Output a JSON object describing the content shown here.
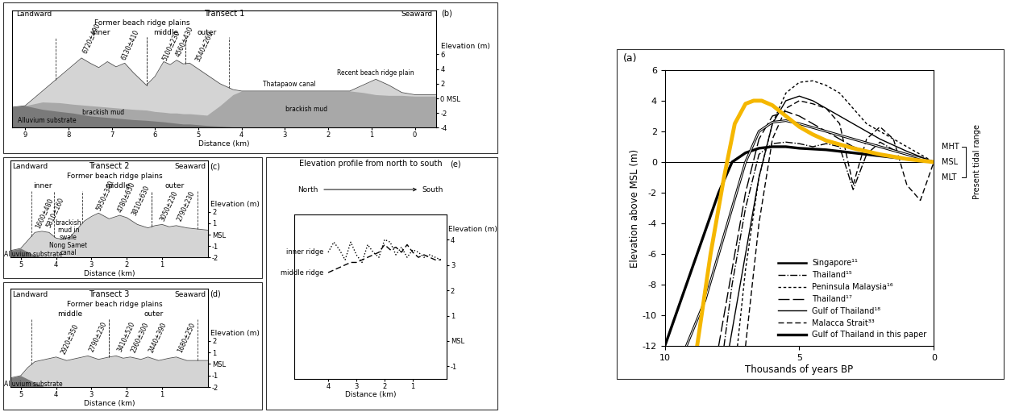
{
  "chart_data": [
    {
      "type": "cross_section",
      "panel": "(b)",
      "title": "Transect 1",
      "left_label": "Landward",
      "right_label": "Seaward",
      "group_title": "Former beach ridge plains",
      "xlabel": "Distance (km)",
      "ylabel": "Elevation (m)",
      "xlim": [
        9.3,
        -0.5
      ],
      "xticks": [
        9,
        8,
        7,
        6,
        5,
        4,
        3,
        2,
        1,
        0
      ],
      "ylim": [
        -4,
        12
      ],
      "yticks": [
        -4,
        -2,
        {
          "value": 0,
          "label": "0 MSL"
        },
        2,
        4,
        6
      ],
      "x": [
        9.3,
        9.0,
        8.6,
        8.2,
        7.9,
        7.7,
        7.5,
        7.3,
        7.1,
        6.9,
        6.7,
        6.5,
        6.2,
        6.0,
        5.8,
        5.65,
        5.5,
        5.35,
        5.2,
        5.0,
        4.8,
        4.5,
        4.2,
        4.0,
        3.0,
        2.0,
        1.5,
        1.2,
        0.9,
        0.6,
        0.3,
        0.0,
        -0.5
      ],
      "layers": [
        {
          "color": "#d4d4d4",
          "values": [
            -1.2,
            -1.0,
            1.0,
            3.0,
            4.5,
            5.5,
            4.8,
            4.2,
            5.0,
            4.3,
            4.8,
            3.5,
            1.8,
            3.0,
            5.0,
            4.6,
            5.2,
            4.7,
            4.8,
            4.0,
            3.2,
            2.0,
            1.2,
            1.0,
            1.0,
            1.0,
            1.0,
            1.8,
            2.6,
            1.8,
            0.8,
            0.5,
            0.5
          ]
        },
        {
          "color": "#a8a8a8",
          "values": [
            -1.2,
            -1.0,
            -0.5,
            -0.6,
            -0.8,
            -0.9,
            -1.0,
            -1.1,
            -1.2,
            -1.3,
            -1.4,
            -1.5,
            -1.6,
            -1.8,
            -1.9,
            -2.0,
            -2.0,
            -2.1,
            -2.1,
            -2.2,
            -2.3,
            -1.0,
            0.5,
            1.0,
            1.0,
            1.0,
            1.0,
            0.8,
            0.5,
            0.4,
            0.4,
            0.3,
            0.3
          ]
        },
        {
          "color": "#7a7a7a",
          "values": [
            -1.2,
            -1.0,
            -1.5,
            -1.8,
            -2.0,
            -2.2,
            -2.4,
            -2.5,
            -2.6,
            -2.7,
            -2.8,
            -2.9,
            -3.0,
            -3.1,
            -3.2,
            -3.3,
            -3.4,
            -3.5,
            -3.5,
            -3.6,
            -3.7,
            -3.8,
            -3.9,
            -4.0,
            -4.0,
            -4.0,
            -4.0,
            -4.0,
            -4.0,
            -4.0,
            -4.0,
            -4.0,
            -4.0
          ]
        }
      ],
      "groups": [
        {
          "label": "inner",
          "from": 8.3,
          "to": 6.2
        },
        {
          "label": "middle",
          "from": 6.2,
          "to": 5.3
        },
        {
          "label": "outer",
          "from": 5.3,
          "to": 4.3
        }
      ],
      "dates": [
        {
          "label": "6720±490",
          "x": 7.7
        },
        {
          "label": "6130±410",
          "x": 6.8
        },
        {
          "label": "5100±230",
          "x": 5.85
        },
        {
          "label": "4560±430",
          "x": 5.55
        },
        {
          "label": "3540±260",
          "x": 5.1
        }
      ],
      "annotations": [
        {
          "text": "brackish mud",
          "x": 7.2,
          "y": -1.9
        },
        {
          "text": "brackish mud",
          "x": 2.5,
          "y": -1.5
        },
        {
          "text": "Alluvium substrate",
          "x": 8.5,
          "y": -3.0
        },
        {
          "text": "Thatapaow canal",
          "x": 2.9,
          "y": 1.9
        },
        {
          "text": "Recent beach ridge plain",
          "x": 0.9,
          "y": 3.5
        }
      ]
    },
    {
      "type": "cross_section",
      "panel": "(c)",
      "title": "Transect 2",
      "left_label": "Landward",
      "right_label": "Seaward",
      "group_title": "Former beach ridge plains",
      "xlabel": "Distance (km)",
      "ylabel": "Elevation (m)",
      "xlim": [
        5.3,
        -0.3
      ],
      "xticks": [
        5,
        4,
        3,
        2,
        1
      ],
      "ylim": [
        -2,
        6.5
      ],
      "yticks": [
        -2,
        -1,
        {
          "value": 0,
          "label": "MSL"
        },
        1,
        2
      ],
      "x": [
        5.3,
        5.0,
        4.8,
        4.6,
        4.4,
        4.2,
        4.0,
        3.8,
        3.6,
        3.4,
        3.2,
        3.0,
        2.8,
        2.5,
        2.2,
        2.0,
        1.7,
        1.4,
        1.2,
        1.0,
        0.8,
        0.6,
        0.3,
        0.0,
        -0.3
      ],
      "layers": [
        {
          "color": "#d4d4d4",
          "values": [
            -1.4,
            -1.2,
            -0.5,
            0.2,
            0.3,
            0.2,
            -0.3,
            -0.4,
            -0.2,
            0.5,
            1.2,
            1.6,
            1.9,
            1.4,
            1.7,
            1.5,
            0.9,
            0.6,
            0.8,
            0.9,
            0.7,
            0.8,
            0.6,
            0.5,
            0.4
          ]
        },
        {
          "color": "#7a7a7a",
          "values": [
            -1.4,
            -1.2,
            -1.5,
            -1.8,
            -2.0,
            -2.0,
            -2.0,
            -2.0,
            -2.0,
            -2.0,
            -2.0,
            -2.0,
            -2.0,
            -2.0,
            -2.0,
            -2.0,
            -2.0,
            -2.0,
            -2.0,
            -2.0,
            -2.0,
            -2.0,
            -2.0,
            -2.0,
            -2.0
          ]
        }
      ],
      "groups": [
        {
          "label": "inner",
          "from": 4.7,
          "to": 4.05
        },
        {
          "label": "middle",
          "from": 3.25,
          "to": 1.3
        },
        {
          "label": "outer",
          "from": 1.3,
          "to": 0.0
        }
      ],
      "dates": [
        {
          "label": "1600±480",
          "x": 4.6
        },
        {
          "label": "5810±160",
          "x": 4.3
        },
        {
          "label": "5950±340",
          "x": 2.9
        },
        {
          "label": "4780±650",
          "x": 2.3
        },
        {
          "label": "3810±630",
          "x": 1.9
        },
        {
          "label": "3050±230",
          "x": 1.1
        },
        {
          "label": "2790±230",
          "x": 0.6
        }
      ],
      "annotations": [
        {
          "text": "brackish\nmud in\nswale",
          "x": 3.65,
          "y": 0.4
        },
        {
          "text": "Nong Samet\ncanal",
          "x": 3.65,
          "y": -1.3
        },
        {
          "text": "Alluvium substrate",
          "x": 4.65,
          "y": -1.75
        }
      ]
    },
    {
      "type": "cross_section",
      "panel": "(d)",
      "title": "Transect 3",
      "left_label": "Landward",
      "right_label": "Seaward",
      "group_title": "Former beach ridge plains",
      "xlabel": "Distance (km)",
      "ylabel": "Elevation (m)",
      "xlim": [
        5.3,
        -0.3
      ],
      "xticks": [
        5,
        4,
        3,
        2,
        1
      ],
      "ylim": [
        -2,
        6.5
      ],
      "yticks": [
        -2,
        -1,
        {
          "value": 0,
          "label": "MSL"
        },
        1,
        2
      ],
      "x": [
        5.3,
        5.0,
        4.8,
        4.6,
        4.3,
        4.0,
        3.7,
        3.4,
        3.1,
        2.8,
        2.5,
        2.3,
        2.1,
        1.9,
        1.6,
        1.4,
        1.1,
        0.8,
        0.6,
        0.3,
        0.0,
        -0.3
      ],
      "layers": [
        {
          "color": "#d4d4d4",
          "values": [
            -1.2,
            -1.0,
            -0.3,
            0.2,
            0.4,
            0.6,
            0.3,
            0.5,
            0.7,
            0.4,
            0.6,
            0.7,
            0.5,
            0.6,
            0.4,
            0.6,
            0.3,
            0.5,
            0.6,
            0.3,
            0.3,
            0.3
          ]
        },
        {
          "color": "#7a7a7a",
          "values": [
            -1.2,
            -1.0,
            -1.3,
            -1.6,
            -2.0,
            -2.0,
            -2.0,
            -2.0,
            -2.0,
            -2.0,
            -2.0,
            -2.0,
            -2.0,
            -2.0,
            -2.0,
            -2.0,
            -2.0,
            -2.0,
            -2.0,
            -2.0,
            -2.0,
            -2.0
          ]
        }
      ],
      "groups": [
        {
          "label": "middle",
          "from": 4.7,
          "to": 2.5
        },
        {
          "label": "outer",
          "from": 2.5,
          "to": 0.0
        }
      ],
      "dates": [
        {
          "label": "2920±350",
          "x": 3.9
        },
        {
          "label": "2790±230",
          "x": 3.1
        },
        {
          "label": "3410±520",
          "x": 2.3
        },
        {
          "label": "2360±300",
          "x": 1.9
        },
        {
          "label": "2440±390",
          "x": 1.4
        },
        {
          "label": "1680±250",
          "x": 0.6
        }
      ],
      "annotations": [
        {
          "text": "Alluvium substrate",
          "x": 4.65,
          "y": -1.75
        }
      ]
    },
    {
      "type": "line",
      "panel": "(e)",
      "title": "Elevation profile from north to south",
      "direction": [
        "North",
        "South"
      ],
      "xlabel": "Distance (km)",
      "ylabel": "Elevation (m)",
      "xlim": [
        5.2,
        -0.2
      ],
      "xticks": [
        4,
        3,
        2,
        1
      ],
      "ylim": [
        -1.5,
        5
      ],
      "yticks": [
        -1,
        {
          "value": 0,
          "label": "MSL"
        },
        1,
        2,
        3,
        4
      ],
      "x": [
        4.0,
        3.8,
        3.6,
        3.4,
        3.2,
        3.0,
        2.8,
        2.6,
        2.4,
        2.2,
        2.0,
        1.8,
        1.6,
        1.4,
        1.2,
        1.0,
        0.8,
        0.6,
        0.4,
        0.2,
        0.0
      ],
      "series": [
        {
          "name": "inner ridge",
          "color": "#000000",
          "line_style": "dotted",
          "values": [
            3.5,
            3.9,
            3.6,
            3.2,
            3.9,
            3.4,
            3.1,
            3.8,
            3.5,
            3.3,
            4.0,
            3.9,
            3.4,
            3.7,
            3.3,
            3.6,
            3.5,
            3.3,
            3.4,
            3.3,
            3.2
          ]
        },
        {
          "name": "middle ridge",
          "color": "#000000",
          "line_style": "dashed",
          "values": [
            2.7,
            2.8,
            2.9,
            3.0,
            3.1,
            3.1,
            3.2,
            3.3,
            3.4,
            3.5,
            3.8,
            3.6,
            3.7,
            3.5,
            3.8,
            3.5,
            3.3,
            3.4,
            3.3,
            3.2,
            3.2
          ]
        }
      ]
    },
    {
      "type": "line",
      "panel": "(a)",
      "xlabel": "Thousands of years BP",
      "ylabel": "Elevation above MSL (m)",
      "xlim": [
        10,
        0
      ],
      "xticks": [
        10,
        5,
        0
      ],
      "ylim": [
        -12,
        6
      ],
      "yticks": [
        -12,
        -10,
        -8,
        -6,
        -4,
        -2,
        0,
        2,
        4,
        6
      ],
      "legend": "lower right",
      "baseline": 0,
      "reference_levels": [
        {
          "label": "MHT",
          "value": 1
        },
        {
          "label": "MSL",
          "value": 0
        },
        {
          "label": "MLT",
          "value": -1
        }
      ],
      "reference_label": "Present tidal range",
      "series": [
        {
          "name": "Singapore¹¹",
          "color": "#000000",
          "line_style": "double",
          "x": [
            9.2,
            8.5,
            8.0,
            7.5,
            7.0,
            6.5,
            6.0,
            5.5,
            5.0,
            4.0,
            3.0,
            2.0,
            1.0,
            0
          ],
          "values": [
            -12,
            -9,
            -6,
            -3,
            0,
            2,
            2.6,
            2.7,
            2.5,
            2.0,
            1.5,
            1.0,
            0.5,
            0
          ]
        },
        {
          "name": "Thailand¹⁵",
          "color": "#000000",
          "line_style": "dashdot",
          "x": [
            7.8,
            7.5,
            7.0,
            6.5,
            6.0,
            5.5,
            5.0,
            4.5,
            4.0,
            3.5,
            3.0,
            2.5,
            2.0,
            1.5,
            1.0,
            0.5,
            0
          ],
          "values": [
            -12,
            -8,
            -3,
            0.5,
            1.2,
            1.3,
            1.2,
            1.0,
            1.2,
            1.0,
            -1.8,
            0.5,
            1.3,
            0.8,
            0.5,
            0.2,
            0
          ]
        },
        {
          "name": "Peninsula Malaysia¹⁶",
          "color": "#000000",
          "line_style": "shortdash",
          "x": [
            7.3,
            7.0,
            6.5,
            6.0,
            5.5,
            5.0,
            4.5,
            4.0,
            3.5,
            3.0,
            2.5,
            2.0,
            1.5,
            1.0,
            0.5,
            0
          ],
          "values": [
            -12,
            -7,
            -1,
            2.5,
            4.5,
            5.2,
            5.3,
            5.0,
            4.5,
            3.5,
            2.5,
            2.0,
            1.5,
            1.0,
            0.5,
            0
          ]
        },
        {
          "name": "Thailand¹⁷",
          "color": "#000000",
          "line_style": "longdash",
          "x": [
            8.0,
            7.5,
            7.0,
            6.5,
            6.0,
            5.5,
            5.0,
            4.5,
            4.0,
            3.0,
            2.0,
            1.0,
            0
          ],
          "values": [
            -12,
            -7,
            -2,
            1.5,
            3.0,
            3.3,
            3.0,
            2.5,
            2.0,
            1.0,
            0.5,
            0.2,
            0
          ]
        },
        {
          "name": "Gulf of Thailand¹⁸",
          "color": "#000000",
          "line_style": "solid",
          "x": [
            7.6,
            7.0,
            6.5,
            6.0,
            5.5,
            5.0,
            4.5,
            4.0,
            3.0,
            2.0,
            1.0,
            0
          ],
          "values": [
            -12,
            -6,
            -1,
            2.5,
            4.0,
            4.3,
            4.0,
            3.5,
            2.5,
            1.5,
            0.7,
            0
          ]
        },
        {
          "name": "Malacca Strait³³",
          "color": "#000000",
          "line_style": "dashed",
          "x": [
            7.0,
            6.5,
            6.0,
            5.5,
            5.0,
            4.5,
            4.0,
            3.5,
            3.0,
            2.5,
            2.0,
            1.5,
            1.0,
            0.5,
            0
          ],
          "values": [
            -12,
            -4,
            1.5,
            3.5,
            4.0,
            3.8,
            3.5,
            2.5,
            -1.5,
            1.5,
            2.3,
            1.5,
            -1.5,
            -2.5,
            0
          ]
        },
        {
          "name": "Gulf of Thailand in this paper",
          "color": "#000000",
          "line_style": "thick",
          "x": [
            10,
            9.5,
            9,
            8.5,
            8,
            7.5,
            7,
            6.5,
            6,
            5.5,
            5,
            4,
            3,
            2,
            1,
            0
          ],
          "values": [
            -12,
            -9.5,
            -7,
            -4.5,
            -2,
            0,
            0.6,
            0.9,
            1.0,
            1.0,
            0.9,
            0.8,
            0.6,
            0.4,
            0.2,
            0
          ]
        },
        {
          "color": "#f5b700",
          "line_style": "highlight",
          "x": [
            8.8,
            8.3,
            7.8,
            7.4,
            7.0,
            6.7,
            6.4,
            6.0,
            5.5,
            5.0,
            4.5,
            4.0,
            3.0,
            2.0,
            1.0,
            0
          ],
          "values": [
            -12,
            -6,
            -1,
            2.5,
            3.8,
            4.0,
            4.0,
            3.7,
            3.0,
            2.3,
            1.8,
            1.4,
            0.9,
            0.5,
            0.2,
            0
          ]
        }
      ]
    }
  ]
}
